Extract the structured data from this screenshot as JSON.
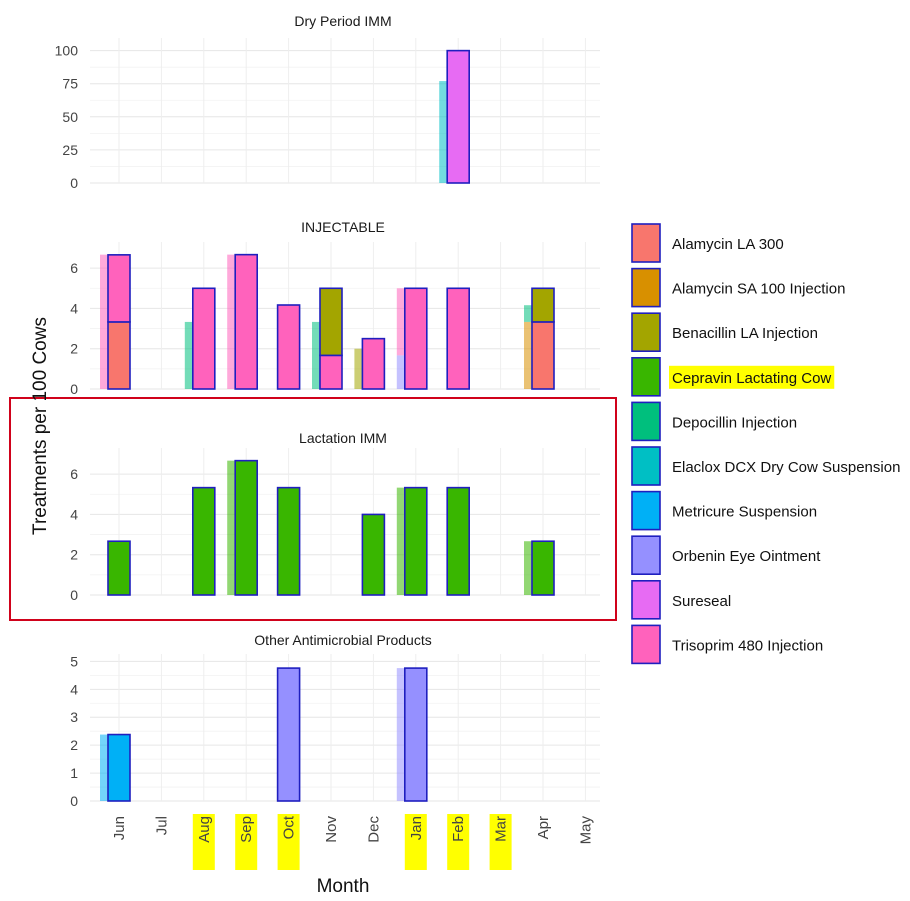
{
  "chart_data": {
    "type": "bar",
    "ylabel": "Treatments per 100 Cows",
    "xlabel": "Month",
    "months": [
      "Jun",
      "Jul",
      "Aug",
      "Sep",
      "Oct",
      "Nov",
      "Dec",
      "Jan",
      "Feb",
      "Mar",
      "Apr",
      "May"
    ],
    "highlighted_months": [
      "Aug",
      "Sep",
      "Oct",
      "Jan",
      "Feb",
      "Mar"
    ],
    "highlight_color": "#ffff00",
    "box_color": "#d0021b",
    "box_panel": "Lactation IMM",
    "bar_outline_color": "#1f1fbf",
    "grid": true,
    "legend": {
      "position": "right",
      "highlighted_item": "Cepravin Lactating Cow",
      "items": [
        {
          "label": "Alamycin LA 300",
          "color": "#f8766d"
        },
        {
          "label": "Alamycin SA 100 Injection",
          "color": "#d89000"
        },
        {
          "label": "Benacillin LA Injection",
          "color": "#a3a500"
        },
        {
          "label": "Cepravin Lactating Cow",
          "color": "#39b600"
        },
        {
          "label": "Depocillin Injection",
          "color": "#00bf7d"
        },
        {
          "label": "Elaclox DCX Dry Cow Suspension",
          "color": "#00bfc4"
        },
        {
          "label": "Metricure Suspension",
          "color": "#00b0f6"
        },
        {
          "label": "Orbenin Eye Ointment",
          "color": "#9590ff"
        },
        {
          "label": "Sureseal",
          "color": "#e76bf3"
        },
        {
          "label": "Trisoprim 480 Injection",
          "color": "#ff62bc"
        }
      ]
    },
    "panels": [
      {
        "title": "Dry Period IMM",
        "ylim": [
          0,
          105
        ],
        "yticks": [
          0,
          25,
          50,
          75,
          100
        ],
        "bars": [
          {
            "month": "Feb",
            "segments": [
              {
                "product": "Sureseal",
                "value": 100
              }
            ]
          }
        ],
        "shadow_bars": [
          {
            "month": "Feb",
            "segments": [
              {
                "product": "Elaclox DCX Dry Cow Suspension",
                "value": 77
              }
            ]
          }
        ]
      },
      {
        "title": "INJECTABLE",
        "ylim": [
          0,
          7
        ],
        "yticks": [
          0,
          2,
          4,
          6
        ],
        "bars": [
          {
            "month": "Jun",
            "segments": [
              {
                "product": "Alamycin LA 300",
                "value": 3.33
              },
              {
                "product": "Trisoprim 480 Injection",
                "value": 3.33
              }
            ]
          },
          {
            "month": "Aug",
            "segments": [
              {
                "product": "Trisoprim 480 Injection",
                "value": 5.0
              }
            ]
          },
          {
            "month": "Sep",
            "segments": [
              {
                "product": "Trisoprim 480 Injection",
                "value": 6.67
              }
            ]
          },
          {
            "month": "Oct",
            "segments": [
              {
                "product": "Trisoprim 480 Injection",
                "value": 4.17
              }
            ]
          },
          {
            "month": "Nov",
            "segments": [
              {
                "product": "Trisoprim 480 Injection",
                "value": 1.67
              },
              {
                "product": "Benacillin LA Injection",
                "value": 3.33
              }
            ]
          },
          {
            "month": "Dec",
            "segments": [
              {
                "product": "Trisoprim 480 Injection",
                "value": 2.5
              }
            ]
          },
          {
            "month": "Jan",
            "segments": [
              {
                "product": "Trisoprim 480 Injection",
                "value": 5.0
              }
            ]
          },
          {
            "month": "Feb",
            "segments": [
              {
                "product": "Trisoprim 480 Injection",
                "value": 5.0
              }
            ]
          },
          {
            "month": "Apr",
            "segments": [
              {
                "product": "Alamycin LA 300",
                "value": 3.33
              },
              {
                "product": "Benacillin LA Injection",
                "value": 1.67
              }
            ]
          }
        ],
        "shadow_bars": [
          {
            "month": "Jun",
            "segments": [
              {
                "product": "Trisoprim 480 Injection",
                "value": 6.67
              }
            ]
          },
          {
            "month": "Aug",
            "segments": [
              {
                "product": "Depocillin Injection",
                "value": 3.33
              }
            ]
          },
          {
            "month": "Sep",
            "segments": [
              {
                "product": "Trisoprim 480 Injection",
                "value": 6.67
              }
            ]
          },
          {
            "month": "Nov",
            "segments": [
              {
                "product": "Depocillin Injection",
                "value": 3.33
              }
            ]
          },
          {
            "month": "Dec",
            "segments": [
              {
                "product": "Benacillin LA Injection",
                "value": 2.0
              }
            ]
          },
          {
            "month": "Jan",
            "segments": [
              {
                "product": "Orbenin Eye Ointment",
                "value": 1.67
              },
              {
                "product": "Trisoprim 480 Injection",
                "value": 3.33
              }
            ]
          },
          {
            "month": "Apr",
            "segments": [
              {
                "product": "Alamycin SA 100 Injection",
                "value": 3.33
              },
              {
                "product": "Depocillin Injection",
                "value": 0.83
              }
            ]
          }
        ]
      },
      {
        "title": "Lactation IMM",
        "ylim": [
          0,
          7
        ],
        "yticks": [
          0,
          2,
          4,
          6
        ],
        "bars": [
          {
            "month": "Jun",
            "segments": [
              {
                "product": "Cepravin Lactating Cow",
                "value": 2.67
              }
            ]
          },
          {
            "month": "Aug",
            "segments": [
              {
                "product": "Cepravin Lactating Cow",
                "value": 5.33
              }
            ]
          },
          {
            "month": "Sep",
            "segments": [
              {
                "product": "Cepravin Lactating Cow",
                "value": 6.67
              }
            ]
          },
          {
            "month": "Oct",
            "segments": [
              {
                "product": "Cepravin Lactating Cow",
                "value": 5.33
              }
            ]
          },
          {
            "month": "Dec",
            "segments": [
              {
                "product": "Cepravin Lactating Cow",
                "value": 4.0
              }
            ]
          },
          {
            "month": "Jan",
            "segments": [
              {
                "product": "Cepravin Lactating Cow",
                "value": 5.33
              }
            ]
          },
          {
            "month": "Feb",
            "segments": [
              {
                "product": "Cepravin Lactating Cow",
                "value": 5.33
              }
            ]
          },
          {
            "month": "Apr",
            "segments": [
              {
                "product": "Cepravin Lactating Cow",
                "value": 2.67
              }
            ]
          }
        ],
        "shadow_bars": [
          {
            "month": "Sep",
            "segments": [
              {
                "product": "Cepravin Lactating Cow",
                "value": 6.67
              }
            ]
          },
          {
            "month": "Jan",
            "segments": [
              {
                "product": "Cepravin Lactating Cow",
                "value": 5.33
              }
            ]
          },
          {
            "month": "Apr",
            "segments": [
              {
                "product": "Cepravin Lactating Cow",
                "value": 2.67
              }
            ]
          }
        ]
      },
      {
        "title": "Other Antimicrobial Products",
        "ylim": [
          0,
          5.05
        ],
        "yticks": [
          0,
          1,
          2,
          3,
          4,
          5
        ],
        "bars": [
          {
            "month": "Jun",
            "segments": [
              {
                "product": "Metricure Suspension",
                "value": 2.38
              }
            ]
          },
          {
            "month": "Oct",
            "segments": [
              {
                "product": "Orbenin Eye Ointment",
                "value": 4.76
              }
            ]
          },
          {
            "month": "Jan",
            "segments": [
              {
                "product": "Orbenin Eye Ointment",
                "value": 4.76
              }
            ]
          }
        ],
        "shadow_bars": [
          {
            "month": "Jun",
            "segments": [
              {
                "product": "Metricure Suspension",
                "value": 2.38
              }
            ]
          },
          {
            "month": "Jan",
            "segments": [
              {
                "product": "Orbenin Eye Ointment",
                "value": 4.76
              }
            ]
          }
        ]
      }
    ]
  }
}
